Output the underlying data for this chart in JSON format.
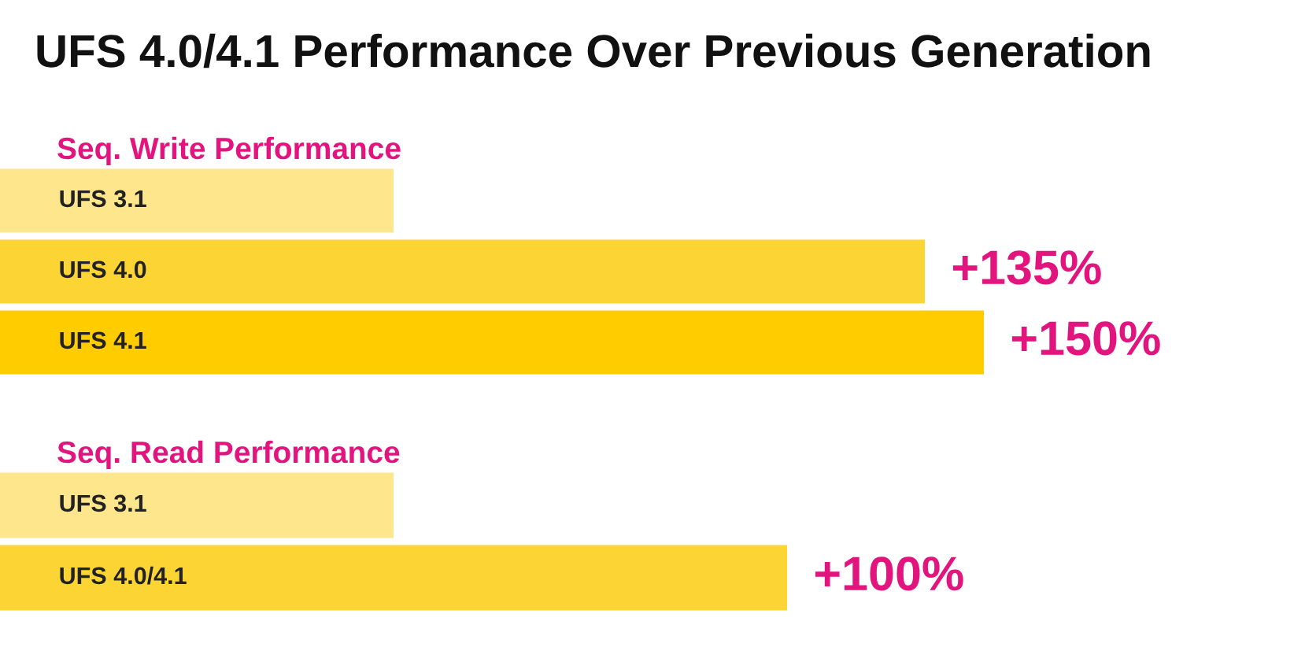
{
  "chart_data": [
    {
      "type": "bar",
      "orientation": "horizontal",
      "stacked": true,
      "title": "UFS 4.0/4.1 Performance Over Previous Generation",
      "subtitle": "Seq. Write Performance",
      "categories": [
        "UFS 3.1",
        "UFS 4.0",
        "UFS 4.1"
      ],
      "series": [
        {
          "colors": [
            "#fde68c",
            "#fcd535",
            "#ffcc00"
          ],
          "values": [
            100,
            100,
            100
          ]
        },
        {
          "colors": [
            "#fde68c",
            "#fcd535",
            "#ffcc00"
          ],
          "values": [
            null,
            135,
            150
          ],
          "value_labels": [
            null,
            "+135%",
            "+150%"
          ]
        }
      ]
    },
    {
      "type": "bar",
      "orientation": "horizontal",
      "stacked": true,
      "subtitle": "Seq. Read Performance",
      "categories": [
        "UFS 3.1",
        "UFS 4.0/4.1"
      ],
      "series": [
        {
          "colors": [
            "#fde68c",
            "#fcd535"
          ],
          "values": [
            100,
            100
          ]
        },
        {
          "colors": [
            "#fde68c",
            "#fcd535"
          ],
          "values": [
            null,
            100
          ],
          "value_labels": [
            null,
            "+100%"
          ]
        }
      ]
    }
  ]
}
